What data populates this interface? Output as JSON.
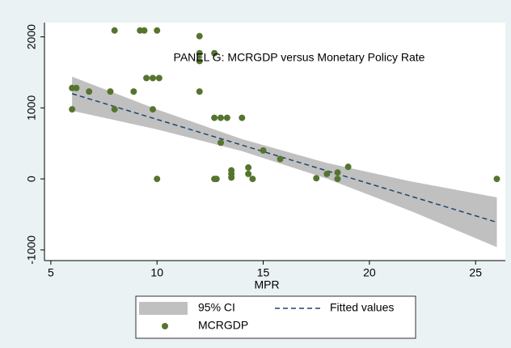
{
  "chart_data": {
    "type": "scatter",
    "title": "PANEL G: MCRGDP versus Monetary Policy Rate",
    "x_label": "MPR",
    "xlim": [
      4.7,
      26.4
    ],
    "ylim": [
      -1150,
      2200
    ],
    "xticks": [
      5,
      10,
      15,
      20,
      25
    ],
    "yticks": [
      -1000,
      0,
      1000,
      2000
    ],
    "series": [
      {
        "name": "95% CI",
        "type": "band",
        "color": "#c0c0c0",
        "x": [
          6,
          10,
          14,
          18,
          22,
          26
        ],
        "lower": [
          960,
          698,
          391,
          4,
          -458,
          -960
        ],
        "upper": [
          1440,
          978,
          561,
          224,
          -38,
          -260
        ]
      },
      {
        "name": "Fitted values",
        "type": "line",
        "color": "#1a476f",
        "x": [
          6,
          26
        ],
        "values": [
          1200,
          -610
        ]
      },
      {
        "name": "MCRGDP",
        "type": "scatter",
        "color": "#55752f",
        "x": [
          6,
          6.2,
          6,
          6.8,
          7.8,
          8,
          8,
          8.9,
          9.2,
          9.4,
          9.5,
          9.8,
          9.8,
          10,
          10.1,
          10,
          12,
          12,
          12,
          12,
          12.7,
          12.7,
          12.7,
          12.8,
          13,
          13,
          13.3,
          13.5,
          13.5,
          13.5,
          14,
          14.3,
          14.3,
          14.5,
          15,
          15.8,
          17.5,
          18,
          18.5,
          18.5,
          19,
          26
        ],
        "values": [
          1280,
          1280,
          980,
          1230,
          1230,
          2090,
          980,
          1230,
          2090,
          2090,
          1420,
          1420,
          980,
          2090,
          1420,
          0,
          2010,
          1770,
          1660,
          1230,
          1770,
          860,
          0,
          0,
          860,
          510,
          860,
          120,
          70,
          20,
          860,
          160,
          70,
          0,
          400,
          280,
          10,
          70,
          90,
          0,
          170,
          0
        ]
      }
    ]
  }
}
